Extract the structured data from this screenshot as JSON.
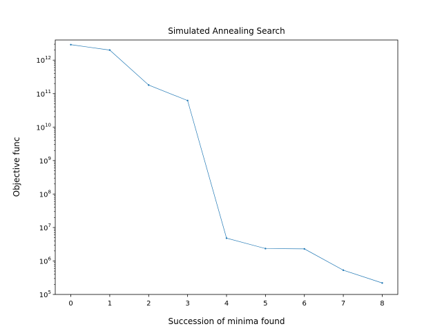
{
  "chart_data": {
    "type": "line",
    "title": "Simulated Annealing Search",
    "xlabel": "Succession of minima found",
    "ylabel": "Objective func",
    "yscale": "log",
    "xlim": [
      -0.4,
      8.4
    ],
    "ylim": [
      100000,
      4000000000000
    ],
    "grid": false,
    "series_color": "#1f77b4",
    "x_ticks": [
      {
        "value": 0,
        "label": "0"
      },
      {
        "value": 1,
        "label": "1"
      },
      {
        "value": 2,
        "label": "2"
      },
      {
        "value": 3,
        "label": "3"
      },
      {
        "value": 4,
        "label": "4"
      },
      {
        "value": 5,
        "label": "5"
      },
      {
        "value": 6,
        "label": "6"
      },
      {
        "value": 7,
        "label": "7"
      },
      {
        "value": 8,
        "label": "8"
      }
    ],
    "y_ticks": [
      {
        "value": 100000,
        "base": "10",
        "exp": "5"
      },
      {
        "value": 1000000,
        "base": "10",
        "exp": "6"
      },
      {
        "value": 10000000,
        "base": "10",
        "exp": "7"
      },
      {
        "value": 100000000,
        "base": "10",
        "exp": "8"
      },
      {
        "value": 1000000000,
        "base": "10",
        "exp": "9"
      },
      {
        "value": 10000000000,
        "base": "10",
        "exp": "10"
      },
      {
        "value": 100000000000,
        "base": "10",
        "exp": "11"
      },
      {
        "value": 1000000000000,
        "base": "10",
        "exp": "12"
      }
    ],
    "x": [
      0,
      1,
      2,
      3,
      4,
      5,
      6,
      7,
      8
    ],
    "y": [
      2900000000000,
      2000000000000,
      180000000000,
      62000000000,
      4800000,
      2350000,
      2300000,
      530000,
      220000
    ]
  }
}
